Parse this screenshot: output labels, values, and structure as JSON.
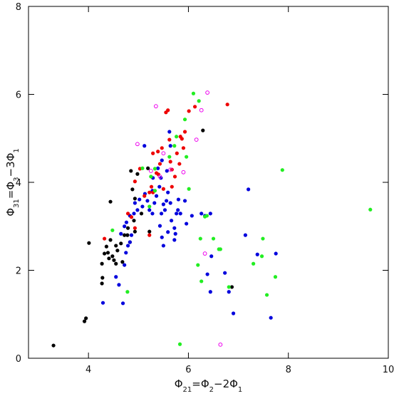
{
  "chart_data": {
    "type": "scatter",
    "xlabel_parts": [
      "Φ",
      "21",
      "=Φ",
      "2",
      "−2Φ",
      "1"
    ],
    "ylabel_parts": [
      "Φ",
      "31",
      "=Φ",
      "3",
      "−3Φ",
      "1"
    ],
    "xlim": [
      2.8,
      10
    ],
    "ylim": [
      0,
      8
    ],
    "xticks": [
      4,
      6,
      8,
      10
    ],
    "yticks": [
      0,
      2,
      4,
      6,
      8
    ],
    "series": [
      {
        "color": "#000000",
        "marker": "filled",
        "x": [
          3.3,
          3.92,
          3.95,
          4.01,
          4.44,
          4.27,
          4.27,
          4.28,
          4.32,
          4.36,
          4.39,
          4.41,
          4.44,
          4.48,
          4.51,
          4.55,
          4.55,
          4.58,
          4.65,
          4.68,
          4.72,
          4.78,
          4.79,
          4.83,
          4.91,
          4.93,
          4.88,
          4.85,
          4.93,
          4.98,
          5.06,
          5.19,
          6.29,
          5.22,
          6.87
        ],
        "y": [
          0.29,
          0.84,
          0.91,
          2.62,
          3.56,
          2.15,
          1.7,
          1.83,
          2.38,
          2.54,
          2.4,
          2.27,
          2.69,
          2.32,
          2.23,
          2.15,
          2.56,
          2.45,
          2.61,
          2.19,
          2.8,
          2.8,
          2.96,
          2.64,
          3.13,
          2.88,
          3.84,
          4.26,
          3.63,
          4.19,
          3.29,
          4.32,
          5.18,
          2.88,
          1.62
        ]
      },
      {
        "color": "#0000dd",
        "marker": "filled",
        "x": [
          4.69,
          4.29,
          4.61,
          4.55,
          4.72,
          4.75,
          4.79,
          4.83,
          4.86,
          4.65,
          4.72,
          4.76,
          4.83,
          4.91,
          4.98,
          4.93,
          5.02,
          5.08,
          5.13,
          5.18,
          5.22,
          5.28,
          5.28,
          5.32,
          5.36,
          5.42,
          5.45,
          5.46,
          5.5,
          5.53,
          5.56,
          5.59,
          5.64,
          5.66,
          5.72,
          5.76,
          5.79,
          5.12,
          5.29,
          5.39,
          5.47,
          5.57,
          5.64,
          5.62,
          5.8,
          5.84,
          5.93,
          5.96,
          5.43,
          5.47,
          5.5,
          5.59,
          5.74,
          5.72,
          6.07,
          6.26,
          6.44,
          6.33,
          6.46,
          6.38,
          6.44,
          6.73,
          6.81,
          6.9,
          7.2,
          7.14,
          7.38,
          7.65,
          7.75
        ],
        "y": [
          1.25,
          1.26,
          1.67,
          1.85,
          2.12,
          2.4,
          2.56,
          2.64,
          2.8,
          2.83,
          3.0,
          3.09,
          3.24,
          3.29,
          3.37,
          3.53,
          3.61,
          3.45,
          3.74,
          3.58,
          3.37,
          3.29,
          3.81,
          3.53,
          3.69,
          3.9,
          4.1,
          3.29,
          3.5,
          3.37,
          3.58,
          3.77,
          3.53,
          3.13,
          2.96,
          3.29,
          3.37,
          4.83,
          4.1,
          4.32,
          4.5,
          4.26,
          4.83,
          5.15,
          3.61,
          3.29,
          3.58,
          3.06,
          3.01,
          2.75,
          2.56,
          2.87,
          2.83,
          2.69,
          3.24,
          3.29,
          3.29,
          3.24,
          2.32,
          1.91,
          1.51,
          1.94,
          1.51,
          1.02,
          3.84,
          2.8,
          2.36,
          0.92,
          2.38
        ]
      },
      {
        "color": "#ee0000",
        "marker": "filled",
        "x": [
          4.79,
          4.86,
          4.93,
          4.93,
          5.03,
          5.12,
          5.22,
          5.26,
          5.29,
          5.29,
          5.39,
          5.4,
          5.43,
          5.47,
          5.5,
          5.55,
          5.59,
          5.62,
          5.64,
          5.67,
          5.73,
          5.77,
          5.82,
          5.84,
          5.87,
          5.9,
          5.93,
          6.01,
          6.13,
          6.78,
          5.36,
          5.67,
          5.22,
          4.32
        ],
        "y": [
          3.29,
          3.21,
          2.96,
          4.02,
          4.31,
          3.69,
          3.77,
          3.9,
          3.77,
          4.66,
          4.7,
          4.18,
          4.42,
          4.78,
          3.85,
          5.59,
          5.64,
          4.97,
          4.47,
          4.29,
          4.13,
          4.66,
          4.42,
          5.04,
          4.99,
          4.78,
          5.15,
          5.62,
          5.72,
          5.77,
          4.21,
          3.9,
          2.8,
          2.72
        ]
      },
      {
        "color": "#22ee22",
        "marker": "filled",
        "x": [
          6.1,
          6.21,
          5.93,
          5.76,
          5.72,
          5.62,
          5.33,
          5.25,
          5.33,
          5.22,
          5.08,
          4.48,
          4.78,
          5.83,
          5.96,
          6.01,
          6.33,
          6.37,
          6.24,
          6.5,
          6.61,
          6.64,
          6.19,
          6.26,
          6.81,
          7.3,
          7.49,
          7.47,
          7.57,
          7.74,
          7.88,
          9.64
        ],
        "y": [
          6.02,
          5.85,
          5.43,
          5.04,
          4.83,
          4.58,
          4.31,
          4.13,
          3.81,
          3.45,
          4.32,
          2.91,
          1.51,
          0.32,
          4.58,
          3.85,
          3.22,
          3.24,
          2.72,
          2.72,
          2.48,
          2.48,
          2.12,
          1.75,
          1.62,
          2.15,
          2.72,
          2.32,
          1.44,
          1.85,
          4.28,
          3.38
        ]
      },
      {
        "color": "#ee00ee",
        "marker": "open",
        "x": [
          6.38,
          5.35,
          6.26,
          6.16,
          4.98,
          5.5,
          5.64,
          5.43,
          5.9,
          5.25,
          6.33,
          6.64
        ],
        "y": [
          6.04,
          5.73,
          5.64,
          4.97,
          4.87,
          4.66,
          4.29,
          4.13,
          4.23,
          4.26,
          2.38,
          0.31
        ]
      }
    ]
  }
}
